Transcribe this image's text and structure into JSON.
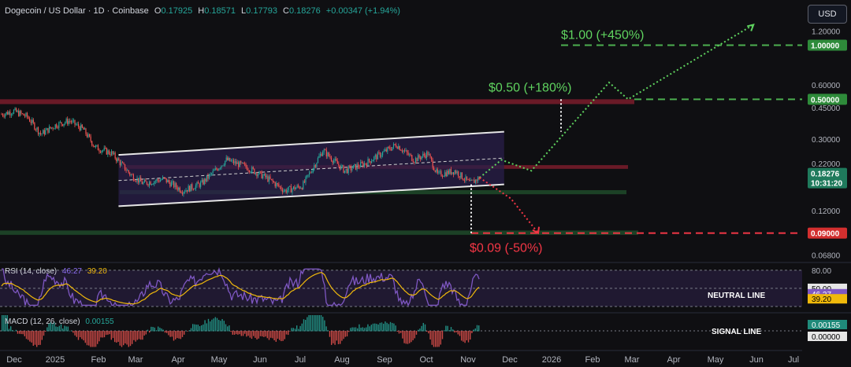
{
  "header": {
    "symbol": "Dogecoin / US Dollar · 1D · Coinbase",
    "o_label": "O",
    "o_value": "0.17925",
    "h_label": "H",
    "h_value": "0.18571",
    "l_label": "L",
    "l_value": "0.17793",
    "c_label": "C",
    "c_value": "0.18276",
    "change": "+0.00347 (+1.94%)"
  },
  "currency_button": "USD",
  "colors": {
    "background": "#0f0f12",
    "green": "#4caf50",
    "red": "#f23645",
    "white": "#e6e6e6",
    "rsi": "#7e57c2",
    "rsi_ma": "#f0b90b",
    "channel_fill": "#2a1f4a"
  },
  "rsi_panel": {
    "label": "RSI (14, close)",
    "rsi_value": "46.27",
    "ma_value": "39.20",
    "badge_rsi": "46.27",
    "badge_ma": "39.20",
    "level_80": "80.00",
    "level_50": "50.00",
    "neutral_label": "NEUTRAL LINE"
  },
  "macd_panel": {
    "label": "MACD (12, 26, close)",
    "value": "0.00155",
    "badge_value": "0.00155",
    "badge_zero": "0.00000",
    "signal_label": "SIGNAL LINE"
  },
  "chart_data": {
    "type": "candlestick",
    "scale": "log",
    "price_axis_ticks": [
      "1.20000",
      "1.00000",
      "0.60000",
      "0.50000",
      "0.45000",
      "0.30000",
      "0.22000",
      "0.18276",
      "0.12000",
      "0.09000",
      "0.06800"
    ],
    "price_axis": {
      "ticks": [
        1.2,
        0.6,
        0.45,
        0.3,
        0.22,
        0.12,
        0.068
      ],
      "tick_labels": [
        "1.20000",
        "0.60000",
        "0.45000",
        "0.30000",
        "0.22000",
        "0.12000",
        "0.06800"
      ]
    },
    "time_axis": [
      "Dec",
      "2025",
      "Feb",
      "Mar",
      "Apr",
      "May",
      "Jun",
      "Jul",
      "Aug",
      "Sep",
      "Oct",
      "Nov",
      "Dec",
      "2026",
      "Feb",
      "Mar",
      "Apr",
      "May",
      "Jun",
      "Jul"
    ],
    "current_price": "0.18276",
    "countdown": "10:31:20",
    "price_labels": [
      {
        "text": "1.00000",
        "value": 1.0
      },
      {
        "text": "0.50000",
        "value": 0.5
      },
      {
        "text": "0.09000",
        "value": 0.09
      }
    ],
    "annotations": [
      {
        "text": "$1.00 (+450%)",
        "price": 1.0
      },
      {
        "text": "$0.50 (+180%)",
        "price": 0.5
      },
      {
        "text": "$0.09 (-50%)",
        "price": 0.09
      }
    ],
    "zones": [
      {
        "kind": "resistance",
        "from": 0.47,
        "to": 0.5
      },
      {
        "kind": "resistance",
        "from": 0.205,
        "to": 0.215
      },
      {
        "kind": "support",
        "from": 0.148,
        "to": 0.156
      },
      {
        "kind": "support",
        "from": 0.088,
        "to": 0.093
      }
    ],
    "channel": {
      "upper": [
        [
          "2025-02-20",
          0.245
        ],
        [
          "2025-11-30",
          0.33
        ]
      ],
      "lower": [
        [
          "2025-02-20",
          0.127
        ],
        [
          "2025-11-30",
          0.168
        ]
      ]
    },
    "price_series": [
      [
        "2024-11-25",
        0.41
      ],
      [
        "2024-12-05",
        0.43
      ],
      [
        "2024-12-15",
        0.4
      ],
      [
        "2024-12-25",
        0.32
      ],
      [
        "2025-01-05",
        0.36
      ],
      [
        "2025-01-15",
        0.38
      ],
      [
        "2025-01-25",
        0.34
      ],
      [
        "2025-02-03",
        0.27
      ],
      [
        "2025-02-15",
        0.25
      ],
      [
        "2025-03-01",
        0.19
      ],
      [
        "2025-03-10",
        0.17
      ],
      [
        "2025-03-25",
        0.18
      ],
      [
        "2025-04-08",
        0.155
      ],
      [
        "2025-04-22",
        0.17
      ],
      [
        "2025-05-10",
        0.23
      ],
      [
        "2025-05-25",
        0.21
      ],
      [
        "2025-06-10",
        0.18
      ],
      [
        "2025-06-22",
        0.155
      ],
      [
        "2025-07-05",
        0.165
      ],
      [
        "2025-07-20",
        0.26
      ],
      [
        "2025-08-05",
        0.2
      ],
      [
        "2025-08-20",
        0.22
      ],
      [
        "2025-09-12",
        0.28
      ],
      [
        "2025-09-25",
        0.23
      ],
      [
        "2025-10-05",
        0.25
      ],
      [
        "2025-10-12",
        0.19
      ],
      [
        "2025-10-25",
        0.2
      ],
      [
        "2025-11-05",
        0.17
      ],
      [
        "2025-11-12",
        0.183
      ]
    ],
    "projection_bull": [
      [
        "2025-11-12",
        0.183
      ],
      [
        "2025-11-28",
        0.23
      ],
      [
        "2025-12-20",
        0.2
      ],
      [
        "2026-02-15",
        0.62
      ],
      [
        "2026-03-01",
        0.5
      ],
      [
        "2026-06-01",
        1.3
      ]
    ],
    "projection_bear": [
      [
        "2025-11-12",
        0.183
      ],
      [
        "2025-12-05",
        0.14
      ],
      [
        "2025-12-25",
        0.09
      ]
    ]
  }
}
